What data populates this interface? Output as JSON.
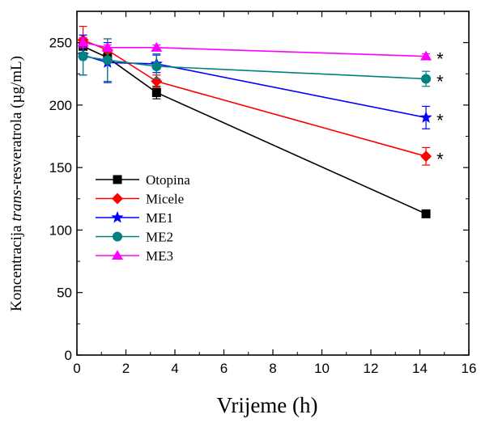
{
  "chart_data": {
    "type": "line",
    "xlabel": "Vrijeme (h)",
    "ylabel_parts": [
      "Koncentracija ",
      "trans",
      "-resveratrola (µg/mL)"
    ],
    "xlim": [
      0,
      16
    ],
    "ylim": [
      0,
      275
    ],
    "xticks": [
      0,
      2,
      4,
      6,
      8,
      10,
      12,
      14,
      16
    ],
    "yticks": [
      0,
      50,
      100,
      150,
      200,
      250
    ],
    "legend_position": "lower-left",
    "series": [
      {
        "name": "Otopina",
        "color": "#000000",
        "marker": "square",
        "x": [
          0.25,
          1.25,
          3.25,
          14.25
        ],
        "y": [
          247,
          238,
          210,
          113
        ],
        "err": [
          5,
          4,
          5,
          2
        ]
      },
      {
        "name": "Micele",
        "color": "#ff0000",
        "marker": "diamond",
        "x": [
          0.25,
          1.25,
          3.25,
          14.25
        ],
        "y": [
          252,
          244,
          219,
          159
        ],
        "err": [
          11,
          9,
          5,
          7
        ]
      },
      {
        "name": "ME1",
        "color": "#0000ff",
        "marker": "star",
        "x": [
          0.25,
          1.25,
          3.25,
          14.25
        ],
        "y": [
          240,
          234,
          233,
          190
        ],
        "err": [
          16,
          16,
          7,
          9
        ]
      },
      {
        "name": "ME2",
        "color": "#008080",
        "marker": "circle",
        "x": [
          0.25,
          1.25,
          3.25,
          14.25
        ],
        "y": [
          239,
          236,
          231,
          221
        ],
        "err": [
          15,
          17,
          10,
          6
        ]
      },
      {
        "name": "ME3",
        "color": "#ff00ff",
        "marker": "triangle",
        "x": [
          0.25,
          1.25,
          3.25,
          14.25
        ],
        "y": [
          250,
          246,
          246,
          239
        ],
        "err": [
          4,
          2,
          2,
          2
        ]
      }
    ],
    "annotations": [
      {
        "text": "*",
        "series": "ME3"
      },
      {
        "text": "*",
        "series": "ME2"
      },
      {
        "text": "*",
        "series": "ME1"
      },
      {
        "text": "*",
        "series": "Micele"
      }
    ]
  }
}
